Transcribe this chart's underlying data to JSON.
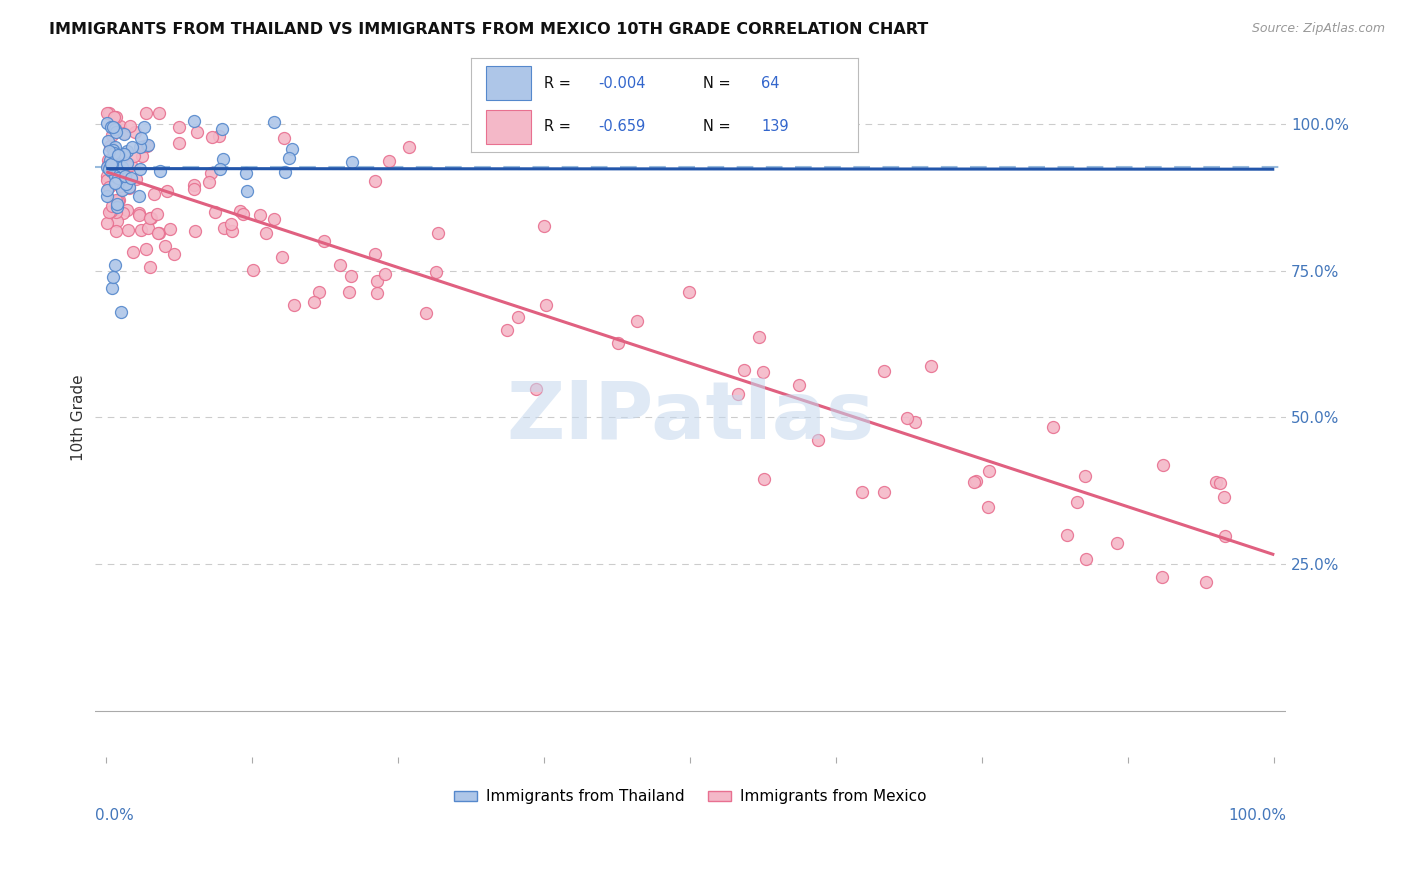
{
  "title": "IMMIGRANTS FROM THAILAND VS IMMIGRANTS FROM MEXICO 10TH GRADE CORRELATION CHART",
  "source": "Source: ZipAtlas.com",
  "ylabel": "10th Grade",
  "thailand_color": "#aec6e8",
  "mexico_color": "#f4b8c8",
  "thailand_edge": "#5588cc",
  "mexico_edge": "#e87090",
  "thailand_trendline_color": "#2255aa",
  "mexico_trendline_color": "#e06080",
  "dashed_line_color": "#99bbdd",
  "watermark_color": "#c5d8ee",
  "background_color": "#ffffff",
  "grid_color": "#cccccc",
  "title_color": "#111111",
  "axis_label_color": "#4477bb",
  "legend_text_color": "#111111",
  "legend_value_color": "#3366cc",
  "legend_R1": "-0.004",
  "legend_N1": "64",
  "legend_R2": "-0.659",
  "legend_N2": "139",
  "R_thailand": -0.004,
  "R_mexico": -0.659,
  "N_thailand": 64,
  "N_mexico": 139
}
